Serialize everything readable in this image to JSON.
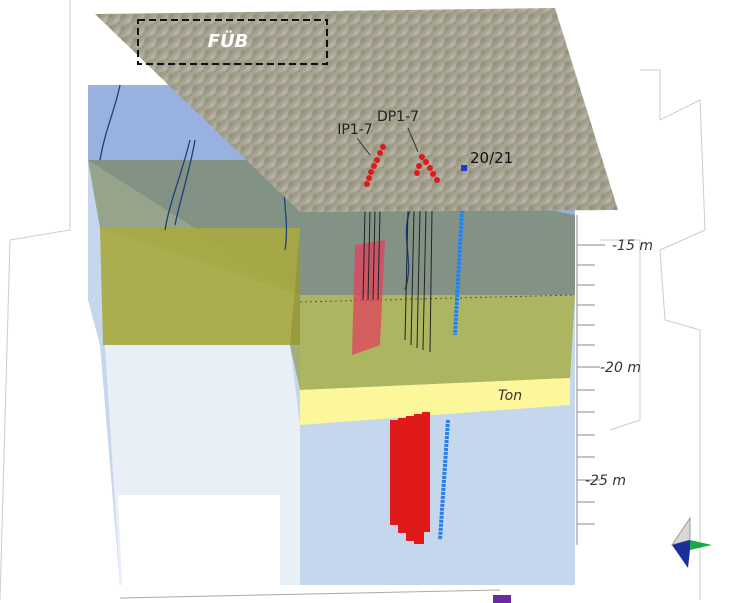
{
  "map": {
    "area_label": "FÜB"
  },
  "boreholes": {
    "ip": "IP1-7",
    "dp": "DP1-7",
    "well": "20/21"
  },
  "depth_labels": [
    "-15 m",
    "-20 m",
    "-25 m"
  ],
  "layer_label": "Ton"
}
